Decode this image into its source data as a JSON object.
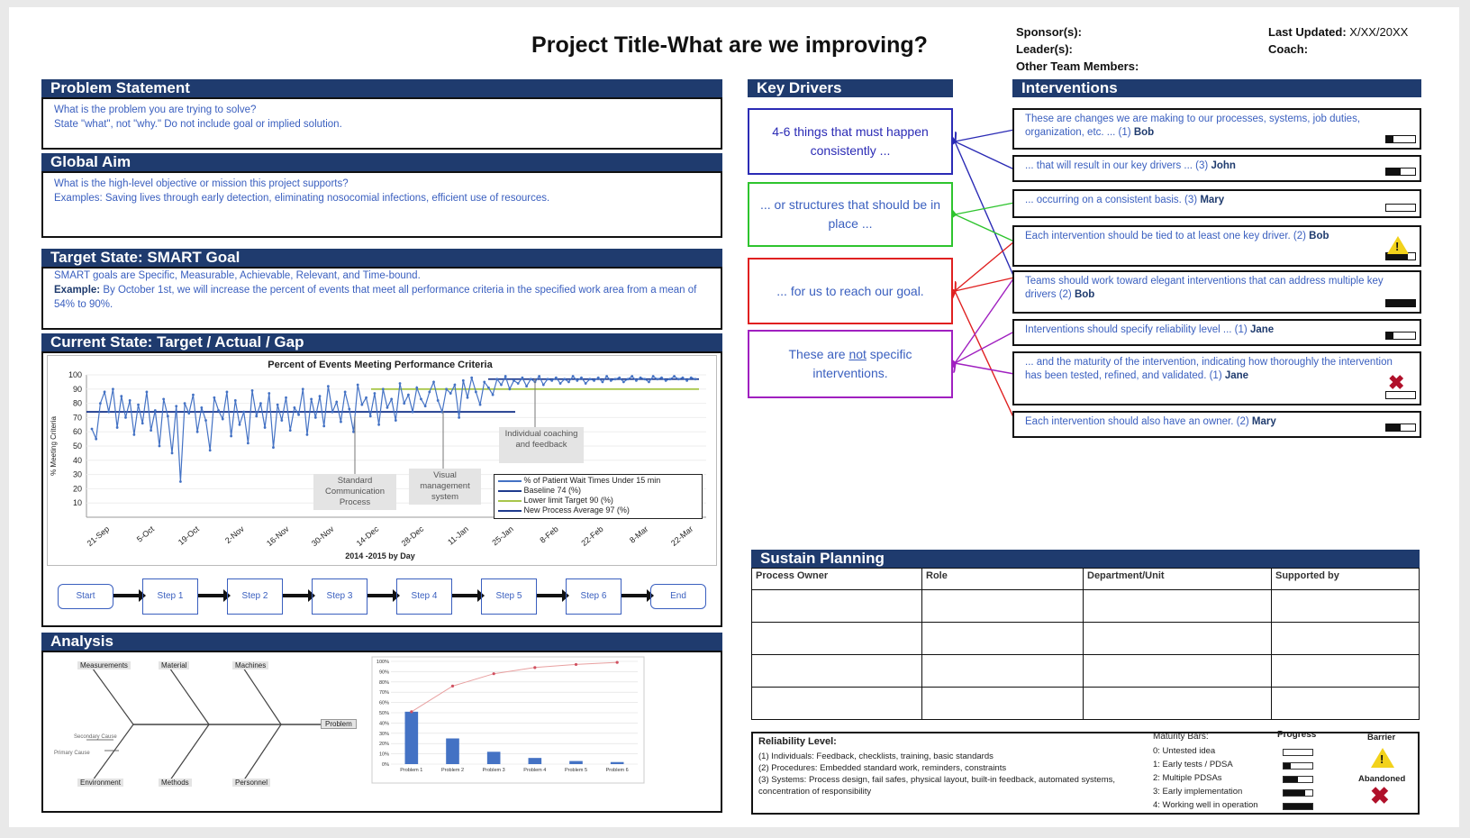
{
  "header": {
    "title": "Project Title-What are we improving?",
    "sponsors_label": "Sponsor(s):",
    "leaders_label": "Leader(s):",
    "team_label": "Other Team Members:",
    "last_updated_label": "Last Updated:",
    "last_updated_value": "X/XX/20XX",
    "coach_label": "Coach:"
  },
  "problem_statement": {
    "heading": "Problem Statement",
    "line1": "What is the problem you are trying to solve?",
    "line2": "State \"what\", not \"why.\" Do not include goal or implied solution."
  },
  "global_aim": {
    "heading": "Global Aim",
    "line1": "What is the high-level objective or mission this project supports?",
    "line2": "Examples: Saving lives through early detection, eliminating nosocomial infections, efficient use of resources."
  },
  "target_state": {
    "heading": "Target State: SMART Goal",
    "line1": "SMART goals are Specific, Measurable, Achievable, Relevant, and Time-bound.",
    "example_label": "Example:",
    "example_text": "By October 1st, we will increase the percent of events that meet all performance criteria in the specified work area from a mean of 54% to 90%."
  },
  "current_state": {
    "heading": "Current State:  Target / Actual / Gap",
    "annotations": [
      "Standard Communication Process",
      "Visual management system",
      "Individual coaching and feedback"
    ],
    "flow": [
      "Start",
      "Step 1",
      "Step 2",
      "Step 3",
      "Step 4",
      "Step 5",
      "Step 6",
      "End"
    ]
  },
  "chart_data": [
    {
      "type": "line",
      "title": "Percent of Events Meeting Performance Criteria",
      "xlabel": "2014 -2015 by Day",
      "ylabel": "% Meeting Criteria",
      "ylim": [
        0,
        100
      ],
      "yticks": [
        10,
        20,
        30,
        40,
        50,
        60,
        70,
        80,
        90,
        100
      ],
      "xticks": [
        "21-Sep",
        "5-Oct",
        "19-Oct",
        "2-Nov",
        "16-Nov",
        "30-Nov",
        "14-Dec",
        "28-Dec",
        "11-Jan",
        "25-Jan",
        "8-Feb",
        "22-Feb",
        "8-Mar",
        "22-Mar"
      ],
      "series": [
        {
          "name": "% of Patient Wait Times Under 15 min",
          "color": "#4472c4",
          "values": [
            62,
            55,
            80,
            88,
            74,
            90,
            63,
            85,
            70,
            82,
            58,
            79,
            66,
            88,
            61,
            75,
            50,
            83,
            71,
            45,
            78,
            25,
            80,
            73,
            86,
            60,
            77,
            68,
            47,
            84,
            75,
            69,
            88,
            57,
            82,
            65,
            74,
            52,
            89,
            71,
            80,
            63,
            87,
            49,
            79,
            68,
            84,
            61,
            77,
            72,
            90,
            58,
            83,
            70,
            85,
            64,
            92,
            74,
            81,
            67,
            88,
            76,
            60,
            93,
            79,
            84,
            71,
            87,
            65,
            90,
            77,
            83,
            68,
            94,
            80,
            86,
            74,
            91,
            83,
            78,
            88,
            95,
            82,
            74,
            90,
            87,
            93,
            70,
            96,
            84,
            98,
            88,
            79,
            95,
            91,
            86,
            97,
            93,
            99,
            90,
            96,
            94,
            98,
            92,
            97,
            95,
            99,
            93,
            97,
            96,
            98,
            94,
            97,
            95,
            99,
            96,
            98,
            94,
            97,
            96,
            98,
            95,
            99,
            96,
            97,
            98,
            95,
            97,
            99,
            96,
            98,
            97,
            95,
            99,
            97,
            98,
            96,
            97,
            99,
            97,
            98,
            96,
            98,
            97
          ]
        },
        {
          "name": "Baseline 74 (%)",
          "color": "#1f3b8e",
          "values": [
            74
          ]
        },
        {
          "name": "Lower limit Target 90 (%)",
          "color": "#a8c64a",
          "values": [
            90
          ]
        },
        {
          "name": "New Process Average  97 (%)",
          "color": "#1f3b8e",
          "values": [
            97
          ]
        }
      ]
    },
    {
      "type": "bar",
      "categories": [
        "Problem 1",
        "Problem 2",
        "Problem 3",
        "Problem 4",
        "Problem 5",
        "Problem 6"
      ],
      "values": [
        51,
        25,
        12,
        6,
        3,
        2
      ],
      "cumulative": [
        51,
        76,
        88,
        94,
        97,
        99
      ],
      "ylim": [
        0,
        100
      ],
      "yticks": [
        "0%",
        "10%",
        "20%",
        "30%",
        "40%",
        "50%",
        "60%",
        "70%",
        "80%",
        "90%",
        "100%"
      ]
    }
  ],
  "analysis": {
    "heading": "Analysis",
    "fishbone_top": [
      "Measurements",
      "Material",
      "Machines"
    ],
    "fishbone_bottom": [
      "Environment",
      "Methods",
      "Personnel"
    ],
    "fishbone_head": "Problem",
    "fishbone_small": [
      "Secondary Cause",
      "Primary Cause"
    ]
  },
  "key_drivers": {
    "heading": "Key Drivers",
    "items": [
      {
        "text": "4-6 things that must happen consistently ...",
        "color": "#2b2bb5"
      },
      {
        "text": "... or structures that should be in place ...",
        "color": "#2ec42e"
      },
      {
        "text": "... for us to reach our goal.",
        "color": "#e02020"
      },
      {
        "text_pre": "These are ",
        "text_u": "not",
        "text_post": " specific interventions.",
        "color": "#a020c0"
      }
    ]
  },
  "interventions": {
    "heading": "Interventions",
    "items": [
      {
        "text": "These are changes we are making to our processes, systems, job duties, organization, etc. ... (1)",
        "owner": "Bob",
        "level": 0.25
      },
      {
        "text": "... that will result in our key drivers ... (3)",
        "owner": "John",
        "level": 0.5
      },
      {
        "text": "... occurring on a consistent basis. (3)",
        "owner": "Mary",
        "level": 0
      },
      {
        "text": "Each intervention should be tied to at least one key driver. (2)",
        "owner": "Bob",
        "level": 0.75
      },
      {
        "text": "Teams should work toward elegant interventions that can address multiple key drivers (2)",
        "owner": "Bob",
        "level": 1
      },
      {
        "text": "Interventions should specify reliability level ... (1)",
        "owner": "Jane",
        "level": 0.25
      },
      {
        "text": "... and the maturity of the intervention, indicating how thoroughly the intervention has been tested, refined, and validated. (1)",
        "owner": "Jane",
        "level": 0
      },
      {
        "text": "Each intervention should also have an owner. (2)",
        "owner": "Mary",
        "level": 0.5
      }
    ]
  },
  "sustain": {
    "heading": "Sustain Planning",
    "columns": [
      "Process Owner",
      "Role",
      "Department/Unit",
      "Supported by"
    ]
  },
  "legend": {
    "reliability_title": "Reliability Level:",
    "reliability": [
      "(1) Individuals: Feedback, checklists, training, basic standards",
      "(2) Procedures: Embedded standard work, reminders, constraints",
      "(3) Systems: Process design, fail safes, physical layout, built-in feedback, automated systems, concentration of responsibility"
    ],
    "maturity_title": "Maturity Bars:",
    "progress_title": "Progress",
    "maturity": [
      "0: Untested idea",
      "1: Early tests / PDSA",
      "2: Multiple PDSAs",
      "3: Early implementation",
      "4: Working well in operation"
    ],
    "barrier_label": "Barrier",
    "abandoned_label": "Abandoned"
  }
}
